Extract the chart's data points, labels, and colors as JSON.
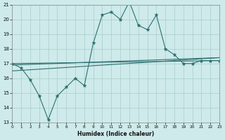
{
  "xlabel": "Humidex (Indice chaleur)",
  "background_color": "#ceeaea",
  "grid_color": "#aacccc",
  "line_color": "#2d7070",
  "x_min": 0,
  "x_max": 23,
  "y_min": 13,
  "y_max": 21,
  "x_ticks": [
    0,
    1,
    2,
    3,
    4,
    5,
    6,
    7,
    8,
    9,
    10,
    11,
    12,
    13,
    14,
    15,
    16,
    17,
    18,
    19,
    20,
    21,
    22,
    23
  ],
  "y_ticks": [
    13,
    14,
    15,
    16,
    17,
    18,
    19,
    20,
    21
  ],
  "line1_x": [
    0,
    1,
    2,
    3,
    4,
    5,
    6,
    7,
    8,
    9,
    10,
    11,
    12,
    13,
    14,
    15,
    16,
    17,
    18,
    19,
    20,
    21,
    22,
    23
  ],
  "line1_y": [
    17.0,
    16.7,
    15.9,
    14.8,
    13.2,
    14.8,
    15.4,
    16.0,
    15.5,
    18.4,
    20.3,
    20.5,
    20.0,
    21.2,
    19.6,
    19.3,
    20.3,
    18.0,
    17.6,
    17.0,
    17.0,
    17.2,
    17.2,
    17.2
  ],
  "line2_x": [
    0,
    23
  ],
  "line2_y": [
    17.0,
    17.2
  ],
  "line3_x": [
    0,
    23
  ],
  "line3_y": [
    16.9,
    17.4
  ],
  "line4_x": [
    0,
    23
  ],
  "line4_y": [
    16.5,
    17.4
  ]
}
